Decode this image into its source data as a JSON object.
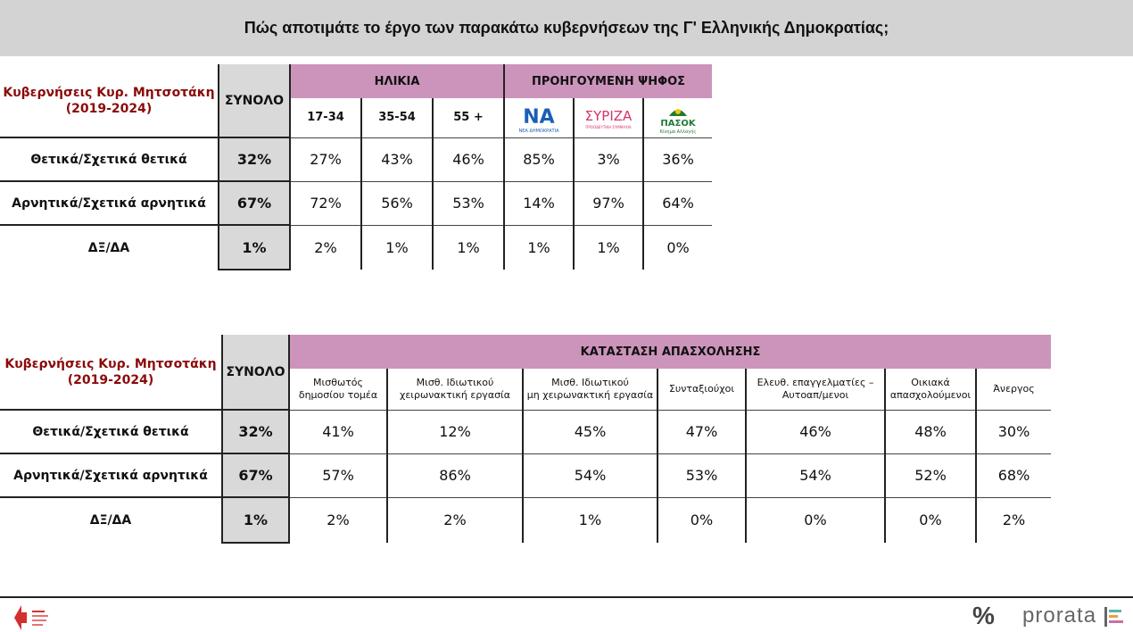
{
  "title": "Πώς αποτιμάτε το έργο των παρακάτω κυβερνήσεων της Γ' Ελληνικής Δημοκρατίας;",
  "colors": {
    "header_pink": "#cc94bb",
    "total_gray": "#d9d9d9",
    "row_label_red": "#8b0a0a",
    "title_bar": "#d3d3d3"
  },
  "chart_data": [
    {
      "type": "table",
      "title": "Κυβερνήσεις Κυρ. Μητσοτάκη (2019-2024)",
      "row_header": "Κυβερνήσεις Κυρ. Μητσοτάκη",
      "row_header_period": "(2019-2024)",
      "total_label": "ΣΥΝΟΛΟ",
      "groups": [
        {
          "label": "ΗΛΙΚΙΑ",
          "columns": [
            "17-34",
            "35-54",
            "55 +"
          ]
        },
        {
          "label": "ΠΡΟΗΓΟΥΜΕΝΗ ΨΗΦΟΣ",
          "columns": [
            "ΝΔ",
            "ΣΥΡΙΖΑ",
            "ΠΑΣΟΚ"
          ]
        }
      ],
      "logos": {
        "nd": {
          "text": "ΝΑ",
          "sub": "ΝΕΑ ΔΗΜΟΚΡΑΤΙΑ",
          "color": "#1a5fb4"
        },
        "syriza": {
          "text": "ΣΥΡΙΖΑ",
          "sub": "ΠΡΟΟΔΕΥΤΙΚΗ ΣΥΜΜΑΧΙΑ",
          "color": "#d6336c"
        },
        "pasok": {
          "text": "ΠΑΣΟΚ",
          "sub": "Κίνημα Αλλαγής",
          "color": "#1e7b34"
        }
      },
      "rows": [
        {
          "label": "Θετικά/Σχετικά θετικά",
          "total": "32%",
          "values": [
            "27%",
            "43%",
            "46%",
            "85%",
            "3%",
            "36%"
          ]
        },
        {
          "label": "Αρνητικά/Σχετικά αρνητικά",
          "total": "67%",
          "values": [
            "72%",
            "56%",
            "53%",
            "14%",
            "97%",
            "64%"
          ]
        },
        {
          "label": "ΔΞ/ΔΑ",
          "total": "1%",
          "values": [
            "2%",
            "1%",
            "1%",
            "1%",
            "1%",
            "0%"
          ]
        }
      ]
    },
    {
      "type": "table",
      "title": "Κυβερνήσεις Κυρ. Μητσοτάκη (2019-2024)",
      "row_header": "Κυβερνήσεις Κυρ. Μητσοτάκη",
      "row_header_period": "(2019-2024)",
      "total_label": "ΣΥΝΟΛΟ",
      "group": "ΚΑΤΑΣΤΑΣΗ ΑΠΑΣΧΟΛΗΣΗΣ",
      "columns": [
        [
          "Μισθωτός",
          "δημοσίου τομέα"
        ],
        [
          "Μισθ. Ιδιωτικού",
          "χειρωνακτική εργασία"
        ],
        [
          "Μισθ. Ιδιωτικού",
          "μη χειρωνακτική εργασία"
        ],
        [
          "Συνταξιούχοι"
        ],
        [
          "Ελευθ. επαγγελματίες –",
          "Αυτοαπ/μενοι"
        ],
        [
          "Οικιακά",
          "απασχολούμενοι"
        ],
        [
          "Άνεργος"
        ]
      ],
      "rows": [
        {
          "label": "Θετικά/Σχετικά θετικά",
          "total": "32%",
          "values": [
            "41%",
            "12%",
            "45%",
            "47%",
            "46%",
            "48%",
            "30%"
          ]
        },
        {
          "label": "Αρνητικά/Σχετικά αρνητικά",
          "total": "67%",
          "values": [
            "57%",
            "86%",
            "54%",
            "53%",
            "54%",
            "52%",
            "68%"
          ]
        },
        {
          "label": "ΔΞ/ΔΑ",
          "total": "1%",
          "values": [
            "2%",
            "2%",
            "1%",
            "0%",
            "0%",
            "0%",
            "2%"
          ]
        }
      ]
    }
  ],
  "footer": {
    "left_logo": "red-arrow-logo",
    "percent_icon": "%",
    "brand": "prorata"
  }
}
